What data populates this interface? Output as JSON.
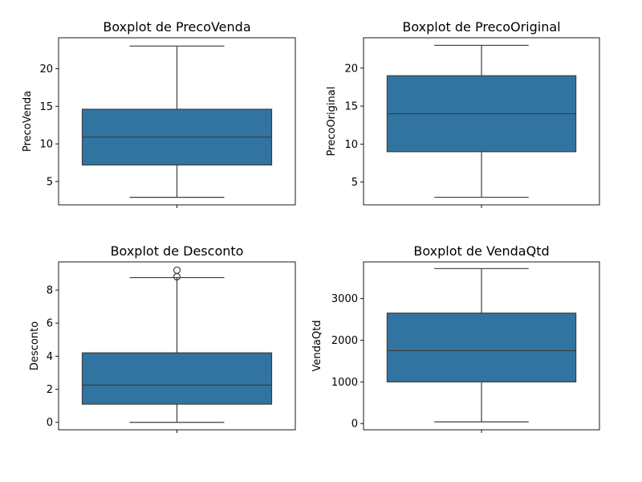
{
  "chart_data": [
    {
      "type": "box",
      "title": "Boxplot de PrecoVenda",
      "ylabel": "PrecoVenda",
      "ylim": [
        1.9,
        24.1
      ],
      "yticks": [
        5,
        10,
        15,
        20
      ],
      "stats": {
        "whisker_low": 2.9,
        "q1": 7.2,
        "median": 10.9,
        "q3": 14.6,
        "whisker_high": 23.0
      },
      "outliers": []
    },
    {
      "type": "box",
      "title": "Boxplot de PrecoOriginal",
      "ylabel": "PrecoOriginal",
      "ylim": [
        2.0,
        24.0
      ],
      "yticks": [
        5,
        10,
        15,
        20
      ],
      "stats": {
        "whisker_low": 3.0,
        "q1": 9.0,
        "median": 14.0,
        "q3": 19.0,
        "whisker_high": 23.0
      },
      "outliers": []
    },
    {
      "type": "box",
      "title": "Boxplot de Desconto",
      "ylabel": "Desconto",
      "ylim": [
        -0.45,
        9.7
      ],
      "yticks": [
        0,
        2,
        4,
        6,
        8
      ],
      "stats": {
        "whisker_low": 0.0,
        "q1": 1.1,
        "median": 2.25,
        "q3": 4.2,
        "whisker_high": 8.75
      },
      "outliers": [
        8.8,
        9.2
      ]
    },
    {
      "type": "box",
      "title": "Boxplot de VendaQtd",
      "ylabel": "VendaQtd",
      "ylim": [
        -150,
        3880
      ],
      "yticks": [
        0,
        1000,
        2000,
        3000
      ],
      "stats": {
        "whisker_low": 40,
        "q1": 1000,
        "median": 1750,
        "q3": 2650,
        "whisker_high": 3720
      },
      "outliers": []
    }
  ],
  "colors": {
    "box_fill": "#3274a1",
    "line": "#3d3d3d",
    "axes": "#000000"
  }
}
